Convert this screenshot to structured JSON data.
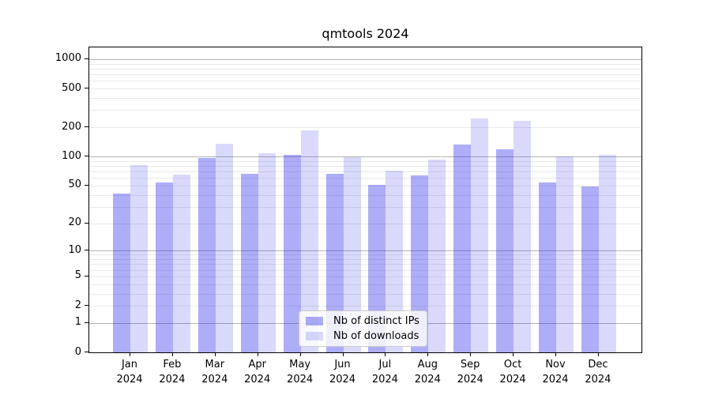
{
  "chart_data": {
    "type": "bar",
    "title": "qmtools 2024",
    "x_months": [
      "Jan",
      "Feb",
      "Mar",
      "Apr",
      "May",
      "Jun",
      "Jul",
      "Aug",
      "Sep",
      "Oct",
      "Nov",
      "Dec"
    ],
    "x_year": "2024",
    "y_tick_values": [
      1000,
      500,
      200,
      100,
      50,
      20,
      10,
      5,
      2,
      1,
      0
    ],
    "ylim": [
      0,
      1320
    ],
    "yscale": "log1p",
    "grid": true,
    "legend_position": "lower center",
    "series": [
      {
        "name": "Nb of distinct IPs",
        "color": "rgba(20,20,235,0.35)",
        "values": [
          41,
          54,
          96,
          66,
          105,
          66,
          51,
          64,
          132,
          118,
          54,
          49
        ]
      },
      {
        "name": "Nb of downloads",
        "color": "rgba(20,20,235,0.16)",
        "values": [
          82,
          65,
          135,
          108,
          186,
          99,
          72,
          93,
          247,
          235,
          101,
          105
        ]
      }
    ]
  }
}
